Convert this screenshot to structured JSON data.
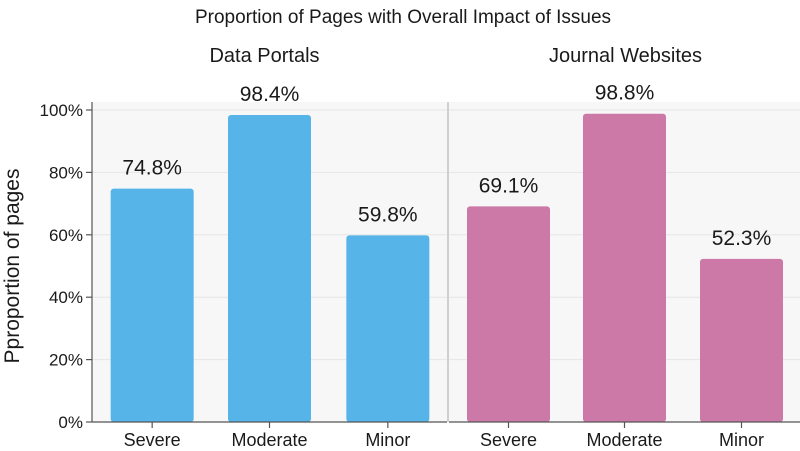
{
  "chart_data": {
    "type": "bar",
    "title": "Proportion of Pages with Overall Impact of Issues",
    "ylabel": "Pproportion of pages",
    "xlabel": "",
    "ylim": [
      0,
      100
    ],
    "yticks": [
      {
        "value": 0,
        "label": "0%"
      },
      {
        "value": 20,
        "label": "20%"
      },
      {
        "value": 40,
        "label": "40%"
      },
      {
        "value": 60,
        "label": "60%"
      },
      {
        "value": 80,
        "label": "80%"
      },
      {
        "value": 100,
        "label": "100%"
      }
    ],
    "grid": true,
    "categories": [
      "Severe",
      "Moderate",
      "Minor"
    ],
    "panels": [
      {
        "name": "Data Portals",
        "color": "#56b4e9",
        "values": [
          74.8,
          98.4,
          59.8
        ],
        "labels": [
          "74.8%",
          "98.4%",
          "59.8%"
        ]
      },
      {
        "name": "Journal Websites",
        "color": "#cc79a7",
        "values": [
          69.1,
          98.8,
          52.3
        ],
        "labels": [
          "69.1%",
          "98.8%",
          "52.3%"
        ]
      }
    ]
  }
}
